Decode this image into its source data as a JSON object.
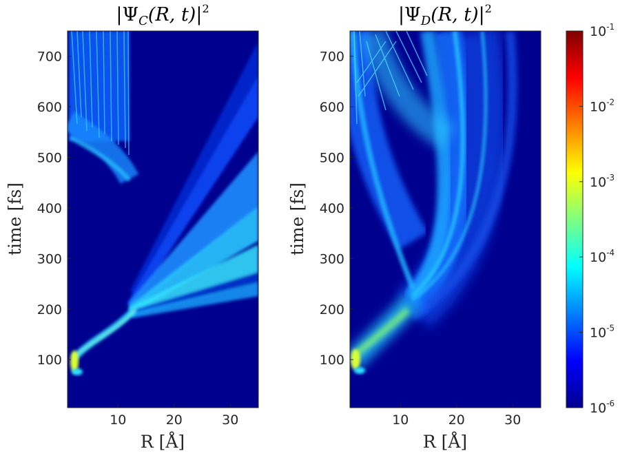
{
  "chart_data": [
    {
      "type": "heatmap",
      "title": "|ΨC(R,t)|²",
      "title_main": "|Ψ",
      "title_sub": "C",
      "title_rest": "(R, t)|",
      "title_sup": "2",
      "xlabel": "R [Å]",
      "ylabel": "time [fs]",
      "xlim": [
        1,
        35
      ],
      "ylim": [
        5,
        750
      ],
      "xticks": [
        10,
        20,
        30
      ],
      "yticks": [
        100,
        200,
        300,
        400,
        500,
        600,
        700
      ],
      "scale": "log",
      "features": [
        {
          "kind": "initial_packet",
          "R": 2.5,
          "t": 90,
          "level": -3.2
        },
        {
          "kind": "main_branch",
          "R": [
            2.5,
            12
          ],
          "t": [
            110,
            190
          ],
          "level": -4.5
        },
        {
          "kind": "fan_bands",
          "R_start": 12,
          "t_start": 200,
          "R_end": 35,
          "t_end": [
            390,
            600
          ],
          "level": -4.4
        },
        {
          "kind": "reflected_interference",
          "R": [
            1.5,
            12
          ],
          "t": [
            450,
            750
          ],
          "level": -4.6
        }
      ]
    },
    {
      "type": "heatmap",
      "title": "|ΨD(R,t)|²",
      "title_main": "|Ψ",
      "title_sub": "D",
      "title_rest": "(R, t)|",
      "title_sup": "2",
      "xlabel": "R [Å]",
      "ylabel": "time [fs]",
      "xlim": [
        1,
        35
      ],
      "ylim": [
        5,
        750
      ],
      "xticks": [
        10,
        20,
        30
      ],
      "yticks": [
        100,
        200,
        300,
        400,
        500,
        600,
        700
      ],
      "scale": "log",
      "features": [
        {
          "kind": "initial_packet",
          "R": 2.5,
          "t": 90,
          "level": -3.0
        },
        {
          "kind": "rising_branch",
          "R": [
            2.5,
            12
          ],
          "t": [
            100,
            220
          ],
          "level": -3.8
        },
        {
          "kind": "curved_bands",
          "R_peak": 26,
          "t_peak": 420,
          "t_end": 750,
          "level": -4.8
        },
        {
          "kind": "interference_top",
          "R": [
            1.5,
            15
          ],
          "t": [
            500,
            750
          ],
          "level": -4.6
        }
      ]
    }
  ],
  "colorbar": {
    "colormap": "jet",
    "ticks": [
      {
        "base": "10",
        "exp": "-1",
        "log": -1
      },
      {
        "base": "10",
        "exp": "-2",
        "log": -2
      },
      {
        "base": "10",
        "exp": "-3",
        "log": -3
      },
      {
        "base": "10",
        "exp": "-4",
        "log": -4
      },
      {
        "base": "10",
        "exp": "-5",
        "log": -5
      },
      {
        "base": "10",
        "exp": "-6",
        "log": -6
      }
    ],
    "range": [
      -6,
      -1
    ]
  },
  "colors": {
    "background": "#00008f",
    "axis": "#262626"
  }
}
